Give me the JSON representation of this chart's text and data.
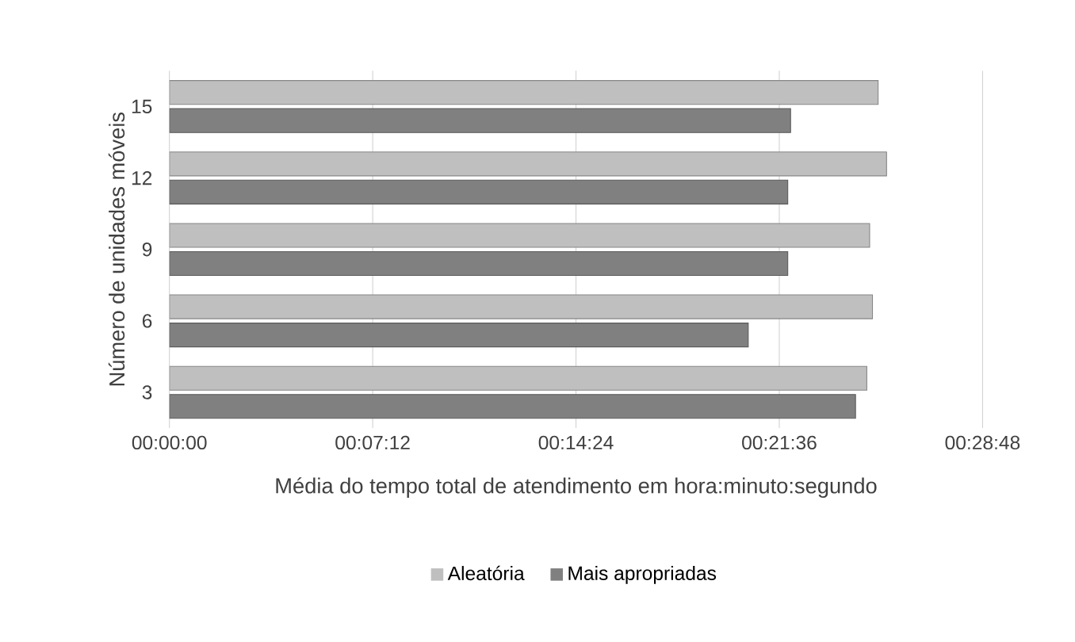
{
  "chart_data": {
    "type": "bar",
    "orientation": "horizontal",
    "categories": [
      "15",
      "12",
      "9",
      "6",
      "3"
    ],
    "series": [
      {
        "name": "Aleatória",
        "color": "#bfbfbf",
        "values": [
          25.1,
          25.4,
          24.8,
          24.9,
          24.7
        ]
      },
      {
        "name": "Mais apropriadas",
        "color": "#808080",
        "values": [
          22.0,
          21.9,
          21.9,
          20.5,
          24.3
        ]
      }
    ],
    "xlim": [
      0,
      28.8
    ],
    "xticks": [
      {
        "value": 0,
        "label": "00:00:00"
      },
      {
        "value": 7.2,
        "label": "00:07:12"
      },
      {
        "value": 14.4,
        "label": "00:14:24"
      },
      {
        "value": 21.6,
        "label": "00:21:36"
      },
      {
        "value": 28.8,
        "label": "00:28:48"
      }
    ],
    "xlabel": "Média do tempo total de atendimento  em hora:minuto:segundo",
    "ylabel": "Número  de unidades móveis",
    "grid": "x",
    "legend": "bottom"
  }
}
